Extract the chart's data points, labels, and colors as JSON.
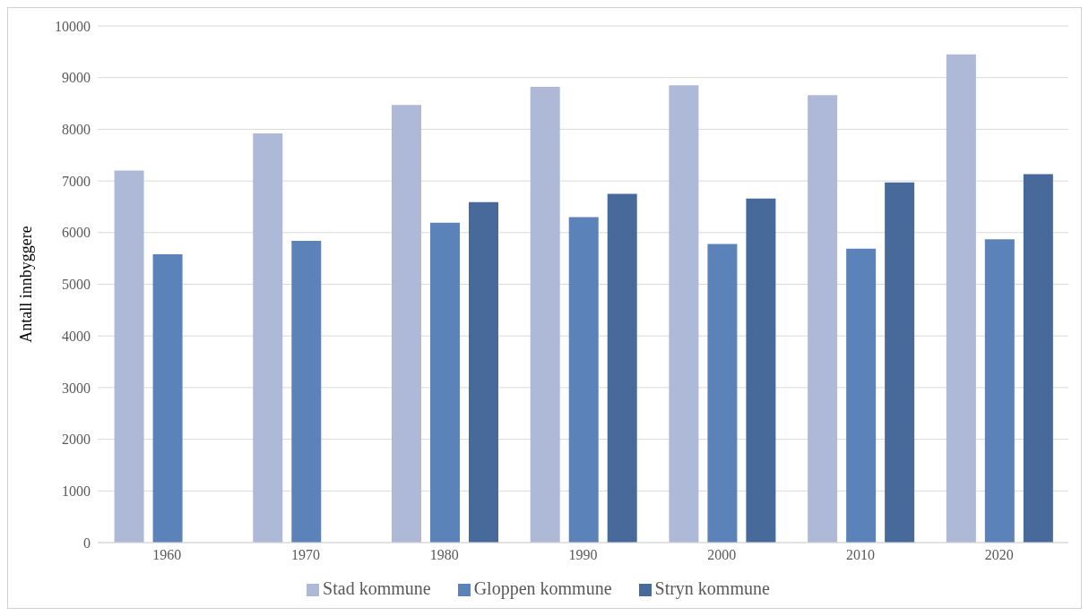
{
  "chart_data": {
    "type": "bar",
    "ylabel": "Antall innbyggere",
    "categories": [
      "1960",
      "1970",
      "1980",
      "1990",
      "2000",
      "2010",
      "2020"
    ],
    "series": [
      {
        "name": "Stad kommune",
        "color": "#adb9d6",
        "values": [
          7200,
          7920,
          8470,
          8820,
          8850,
          8660,
          9450
        ]
      },
      {
        "name": "Gloppen kommune",
        "color": "#5b83ba",
        "values": [
          5580,
          5840,
          6190,
          6300,
          5780,
          5690,
          5870
        ]
      },
      {
        "name": "Stryn kommune",
        "color": "#486a9b",
        "values": [
          null,
          null,
          6590,
          6750,
          6660,
          6970,
          7130
        ]
      }
    ],
    "ylim": [
      0,
      10000
    ],
    "yticks": [
      0,
      1000,
      2000,
      3000,
      4000,
      5000,
      6000,
      7000,
      8000,
      9000,
      10000
    ],
    "grid": "y",
    "legend": "bottom"
  }
}
